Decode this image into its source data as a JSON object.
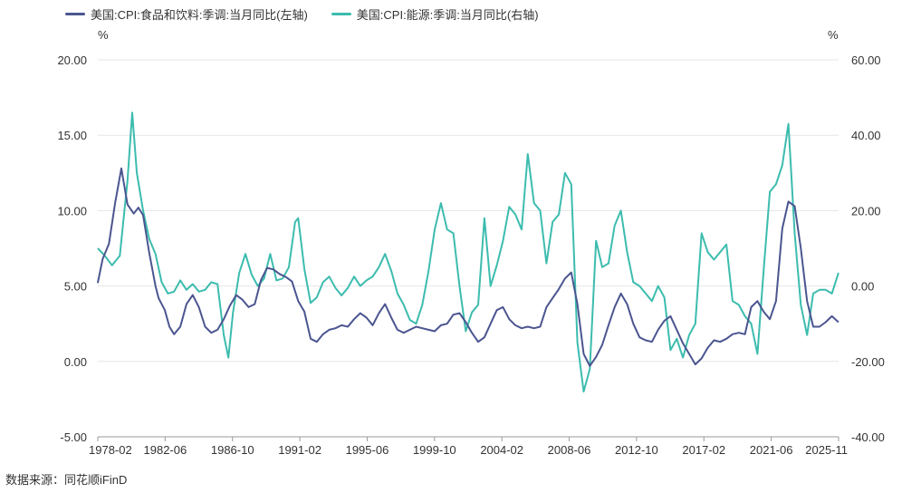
{
  "colors": {
    "series_left": "#4b5590",
    "series_right": "#3cbcae",
    "grid": "#e6e6e6",
    "axis": "#999999"
  },
  "source": "数据来源：同花顺iFinD",
  "chart_data": {
    "type": "line",
    "legend": [
      "美国:CPI:食品和饮料:季调:当月同比(左轴)",
      "美国:CPI:能源:季调:当月同比(右轴)"
    ],
    "y_left_unit": "%",
    "y_right_unit": "%",
    "y_left_ticks": [
      "20.00",
      "15.00",
      "10.00",
      "5.00",
      "0.00",
      "-5.00"
    ],
    "y_right_ticks": [
      "60.00",
      "40.00",
      "20.00",
      "0.00",
      "-20.00",
      "-40.00"
    ],
    "x_ticks": [
      "1978-02",
      "1982-06",
      "1986-10",
      "1991-02",
      "1995-06",
      "1999-10",
      "2004-02",
      "2008-06",
      "2012-10",
      "2017-02",
      "2021-06",
      "2025-11"
    ],
    "y_left_range": [
      -5,
      20
    ],
    "y_right_range": [
      -40,
      60
    ],
    "x_range": [
      1978.083,
      2025.833
    ],
    "series": [
      {
        "name": "美国:CPI:食品和饮料:季调:当月同比(左轴)",
        "axis": "left",
        "x": [
          1978.08,
          1978.4,
          1978.8,
          1979.2,
          1979.6,
          1980.0,
          1980.4,
          1980.7,
          1981.0,
          1981.4,
          1981.8,
          1982.0,
          1982.4,
          1982.7,
          1983.0,
          1983.4,
          1983.8,
          1984.2,
          1984.6,
          1985.0,
          1985.4,
          1985.8,
          1986.2,
          1986.6,
          1987.0,
          1987.4,
          1987.8,
          1988.2,
          1988.6,
          1989.0,
          1989.4,
          1989.8,
          1990.2,
          1990.6,
          1991.0,
          1991.4,
          1991.8,
          1992.2,
          1992.6,
          1993.0,
          1993.4,
          1993.8,
          1994.2,
          1994.6,
          1995.0,
          1995.4,
          1995.8,
          1996.2,
          1996.6,
          1997.0,
          1997.4,
          1997.8,
          1998.2,
          1998.6,
          1999.0,
          1999.4,
          1999.8,
          2000.2,
          2000.6,
          2001.0,
          2001.4,
          2001.8,
          2002.2,
          2002.6,
          2003.0,
          2003.4,
          2003.8,
          2004.2,
          2004.6,
          2005.0,
          2005.4,
          2005.8,
          2006.2,
          2006.6,
          2007.0,
          2007.4,
          2007.8,
          2008.2,
          2008.6,
          2009.0,
          2009.4,
          2009.8,
          2010.2,
          2010.6,
          2011.0,
          2011.4,
          2011.8,
          2012.2,
          2012.6,
          2013.0,
          2013.4,
          2013.8,
          2014.2,
          2014.6,
          2015.0,
          2015.4,
          2015.8,
          2016.2,
          2016.6,
          2017.0,
          2017.4,
          2017.8,
          2018.2,
          2018.6,
          2019.0,
          2019.4,
          2019.8,
          2020.2,
          2020.6,
          2021.0,
          2021.4,
          2021.8,
          2022.2,
          2022.6,
          2023.0,
          2023.4,
          2023.8,
          2024.2,
          2024.6,
          2025.0,
          2025.4,
          2025.83
        ],
        "values": [
          5.2,
          6.8,
          7.8,
          10.5,
          12.8,
          10.4,
          9.8,
          10.2,
          9.7,
          7.2,
          5.0,
          4.2,
          3.4,
          2.3,
          1.8,
          2.3,
          3.8,
          4.4,
          3.6,
          2.3,
          1.9,
          2.1,
          2.8,
          3.7,
          4.4,
          4.1,
          3.6,
          3.8,
          5.4,
          6.2,
          6.1,
          5.8,
          5.6,
          5.3,
          4.0,
          3.3,
          1.5,
          1.3,
          1.8,
          2.1,
          2.2,
          2.4,
          2.3,
          2.8,
          3.2,
          2.9,
          2.4,
          3.2,
          3.8,
          2.9,
          2.1,
          1.9,
          2.1,
          2.3,
          2.2,
          2.1,
          2.0,
          2.4,
          2.5,
          3.1,
          3.2,
          2.6,
          1.9,
          1.3,
          1.6,
          2.5,
          3.4,
          3.6,
          2.8,
          2.4,
          2.2,
          2.3,
          2.2,
          2.3,
          3.6,
          4.2,
          4.8,
          5.5,
          5.9,
          3.8,
          0.5,
          -0.3,
          0.3,
          1.1,
          2.4,
          3.6,
          4.5,
          3.8,
          2.5,
          1.6,
          1.4,
          1.3,
          2.1,
          2.7,
          3.0,
          2.1,
          1.2,
          0.5,
          -0.2,
          0.2,
          0.9,
          1.4,
          1.3,
          1.5,
          1.8,
          1.9,
          1.8,
          3.6,
          4.0,
          3.3,
          2.8,
          4.0,
          8.8,
          10.6,
          10.3,
          7.5,
          4.0,
          2.3,
          2.3,
          2.6,
          3.0,
          2.6
        ]
      },
      {
        "name": "美国:CPI:能源:季调:当月同比(右轴)",
        "axis": "right",
        "x": [
          1978.08,
          1978.5,
          1979.0,
          1979.5,
          1980.0,
          1980.3,
          1980.6,
          1981.0,
          1981.4,
          1981.8,
          1982.2,
          1982.6,
          1983.0,
          1983.4,
          1983.8,
          1984.2,
          1984.6,
          1985.0,
          1985.4,
          1985.8,
          1986.2,
          1986.5,
          1986.8,
          1987.2,
          1987.6,
          1988.0,
          1988.4,
          1988.8,
          1989.2,
          1989.6,
          1990.0,
          1990.4,
          1990.8,
          1991.0,
          1991.4,
          1991.8,
          1992.2,
          1992.6,
          1993.0,
          1993.4,
          1993.8,
          1994.2,
          1994.6,
          1995.0,
          1995.4,
          1995.8,
          1996.2,
          1996.6,
          1997.0,
          1997.4,
          1997.8,
          1998.2,
          1998.6,
          1999.0,
          1999.4,
          1999.8,
          2000.2,
          2000.6,
          2001.0,
          2001.4,
          2001.8,
          2002.2,
          2002.6,
          2003.0,
          2003.4,
          2003.8,
          2004.2,
          2004.6,
          2005.0,
          2005.4,
          2005.8,
          2006.2,
          2006.6,
          2007.0,
          2007.4,
          2007.8,
          2008.2,
          2008.6,
          2009.0,
          2009.4,
          2009.8,
          2010.2,
          2010.6,
          2011.0,
          2011.4,
          2011.8,
          2012.2,
          2012.6,
          2013.0,
          2013.4,
          2013.8,
          2014.2,
          2014.6,
          2015.0,
          2015.4,
          2015.8,
          2016.2,
          2016.6,
          2017.0,
          2017.4,
          2017.8,
          2018.2,
          2018.6,
          2019.0,
          2019.4,
          2019.8,
          2020.2,
          2020.6,
          2021.0,
          2021.4,
          2021.8,
          2022.2,
          2022.6,
          2023.0,
          2023.4,
          2023.8,
          2024.2,
          2024.6,
          2025.0,
          2025.4,
          2025.83
        ],
        "values": [
          10.0,
          8.2,
          5.5,
          8.0,
          28.0,
          46.0,
          30.0,
          20.0,
          12.5,
          8.5,
          1.0,
          -2.0,
          -1.5,
          1.5,
          -1.0,
          0.5,
          -1.5,
          -1.0,
          1.0,
          0.5,
          -13.0,
          -19.0,
          -7.0,
          3.5,
          8.5,
          3.0,
          0.0,
          2.0,
          8.5,
          1.5,
          2.0,
          5.0,
          17.0,
          18.0,
          4.5,
          -4.5,
          -3.0,
          1.0,
          2.5,
          -0.5,
          -2.5,
          -0.5,
          2.5,
          0.0,
          1.5,
          2.5,
          5.0,
          8.5,
          4.0,
          -2.0,
          -5.0,
          -9.0,
          -10.0,
          -5.0,
          4.0,
          15.0,
          22.0,
          15.0,
          14.0,
          0.0,
          -12.0,
          -7.0,
          -5.0,
          18.0,
          0.0,
          5.5,
          12.0,
          21.0,
          19.0,
          15.0,
          35.0,
          22.0,
          20.0,
          6.0,
          17.0,
          19.0,
          30.0,
          27.0,
          -15.0,
          -28.0,
          -22.0,
          12.0,
          5.0,
          6.0,
          16.0,
          20.0,
          9.0,
          1.0,
          0.0,
          -2.0,
          -4.0,
          0.0,
          -3.0,
          -17.0,
          -14.0,
          -19.0,
          -13.0,
          -10.0,
          14.0,
          9.0,
          7.0,
          9.0,
          11.0,
          -4.0,
          -5.0,
          -8.0,
          -10.0,
          -18.0,
          4.0,
          25.0,
          27.0,
          32.0,
          43.0,
          14.0,
          -5.0,
          -13.0,
          -2.0,
          -1.0,
          -1.0,
          -2.0,
          3.5
        ]
      }
    ]
  }
}
